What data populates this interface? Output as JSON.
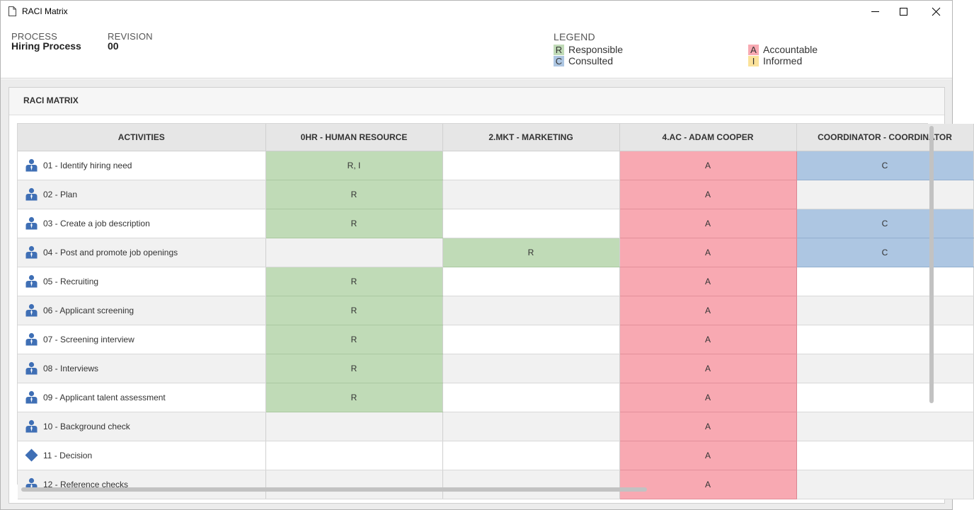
{
  "window": {
    "title": "RACI Matrix"
  },
  "header": {
    "process_label": "PROCESS",
    "process_value": "Hiring Process",
    "revision_label": "REVISION",
    "revision_value": "00"
  },
  "legend": {
    "title": "LEGEND",
    "items": [
      {
        "code": "R",
        "label": "Responsible",
        "color": "#c0dbb7"
      },
      {
        "code": "A",
        "label": "Accountable",
        "color": "#f8a9b2"
      },
      {
        "code": "C",
        "label": "Consulted",
        "color": "#adc6e2"
      },
      {
        "code": "I",
        "label": "Informed",
        "color": "#fbe29a"
      }
    ]
  },
  "panel": {
    "title": "RACI MATRIX"
  },
  "matrix": {
    "columns": [
      "ACTIVITIES",
      "0HR - HUMAN RESOURCE",
      "2.MKT - MARKETING",
      "4.AC - ADAM COOPER",
      "COORDINATOR - COORDINATOR"
    ],
    "rows": [
      {
        "icon": "person-icon",
        "activity": "01 - Identify hiring need",
        "cells": [
          "R, I",
          "",
          "A",
          "C"
        ]
      },
      {
        "icon": "person-icon",
        "activity": "02 - Plan",
        "cells": [
          "R",
          "",
          "A",
          ""
        ]
      },
      {
        "icon": "person-icon",
        "activity": "03 - Create a job description",
        "cells": [
          "R",
          "",
          "A",
          "C"
        ]
      },
      {
        "icon": "person-icon",
        "activity": "04 - Post and promote job openings",
        "cells": [
          "",
          "R",
          "A",
          "C"
        ]
      },
      {
        "icon": "person-icon",
        "activity": "05 - Recruiting",
        "cells": [
          "R",
          "",
          "A",
          ""
        ]
      },
      {
        "icon": "person-icon",
        "activity": "06 - Applicant screening",
        "cells": [
          "R",
          "",
          "A",
          ""
        ]
      },
      {
        "icon": "person-icon",
        "activity": "07 - Screening interview",
        "cells": [
          "R",
          "",
          "A",
          ""
        ]
      },
      {
        "icon": "person-icon",
        "activity": "08 - Interviews",
        "cells": [
          "R",
          "",
          "A",
          ""
        ]
      },
      {
        "icon": "person-icon",
        "activity": "09 - Applicant talent assessment",
        "cells": [
          "R",
          "",
          "A",
          ""
        ]
      },
      {
        "icon": "person-icon",
        "activity": "10 - Background check",
        "cells": [
          "",
          "",
          "A",
          ""
        ]
      },
      {
        "icon": "diamond-icon",
        "activity": "11 - Decision",
        "cells": [
          "",
          "",
          "A",
          ""
        ]
      },
      {
        "icon": "person-icon",
        "activity": "12 - Reference checks",
        "cells": [
          "",
          "",
          "A",
          ""
        ]
      }
    ]
  }
}
